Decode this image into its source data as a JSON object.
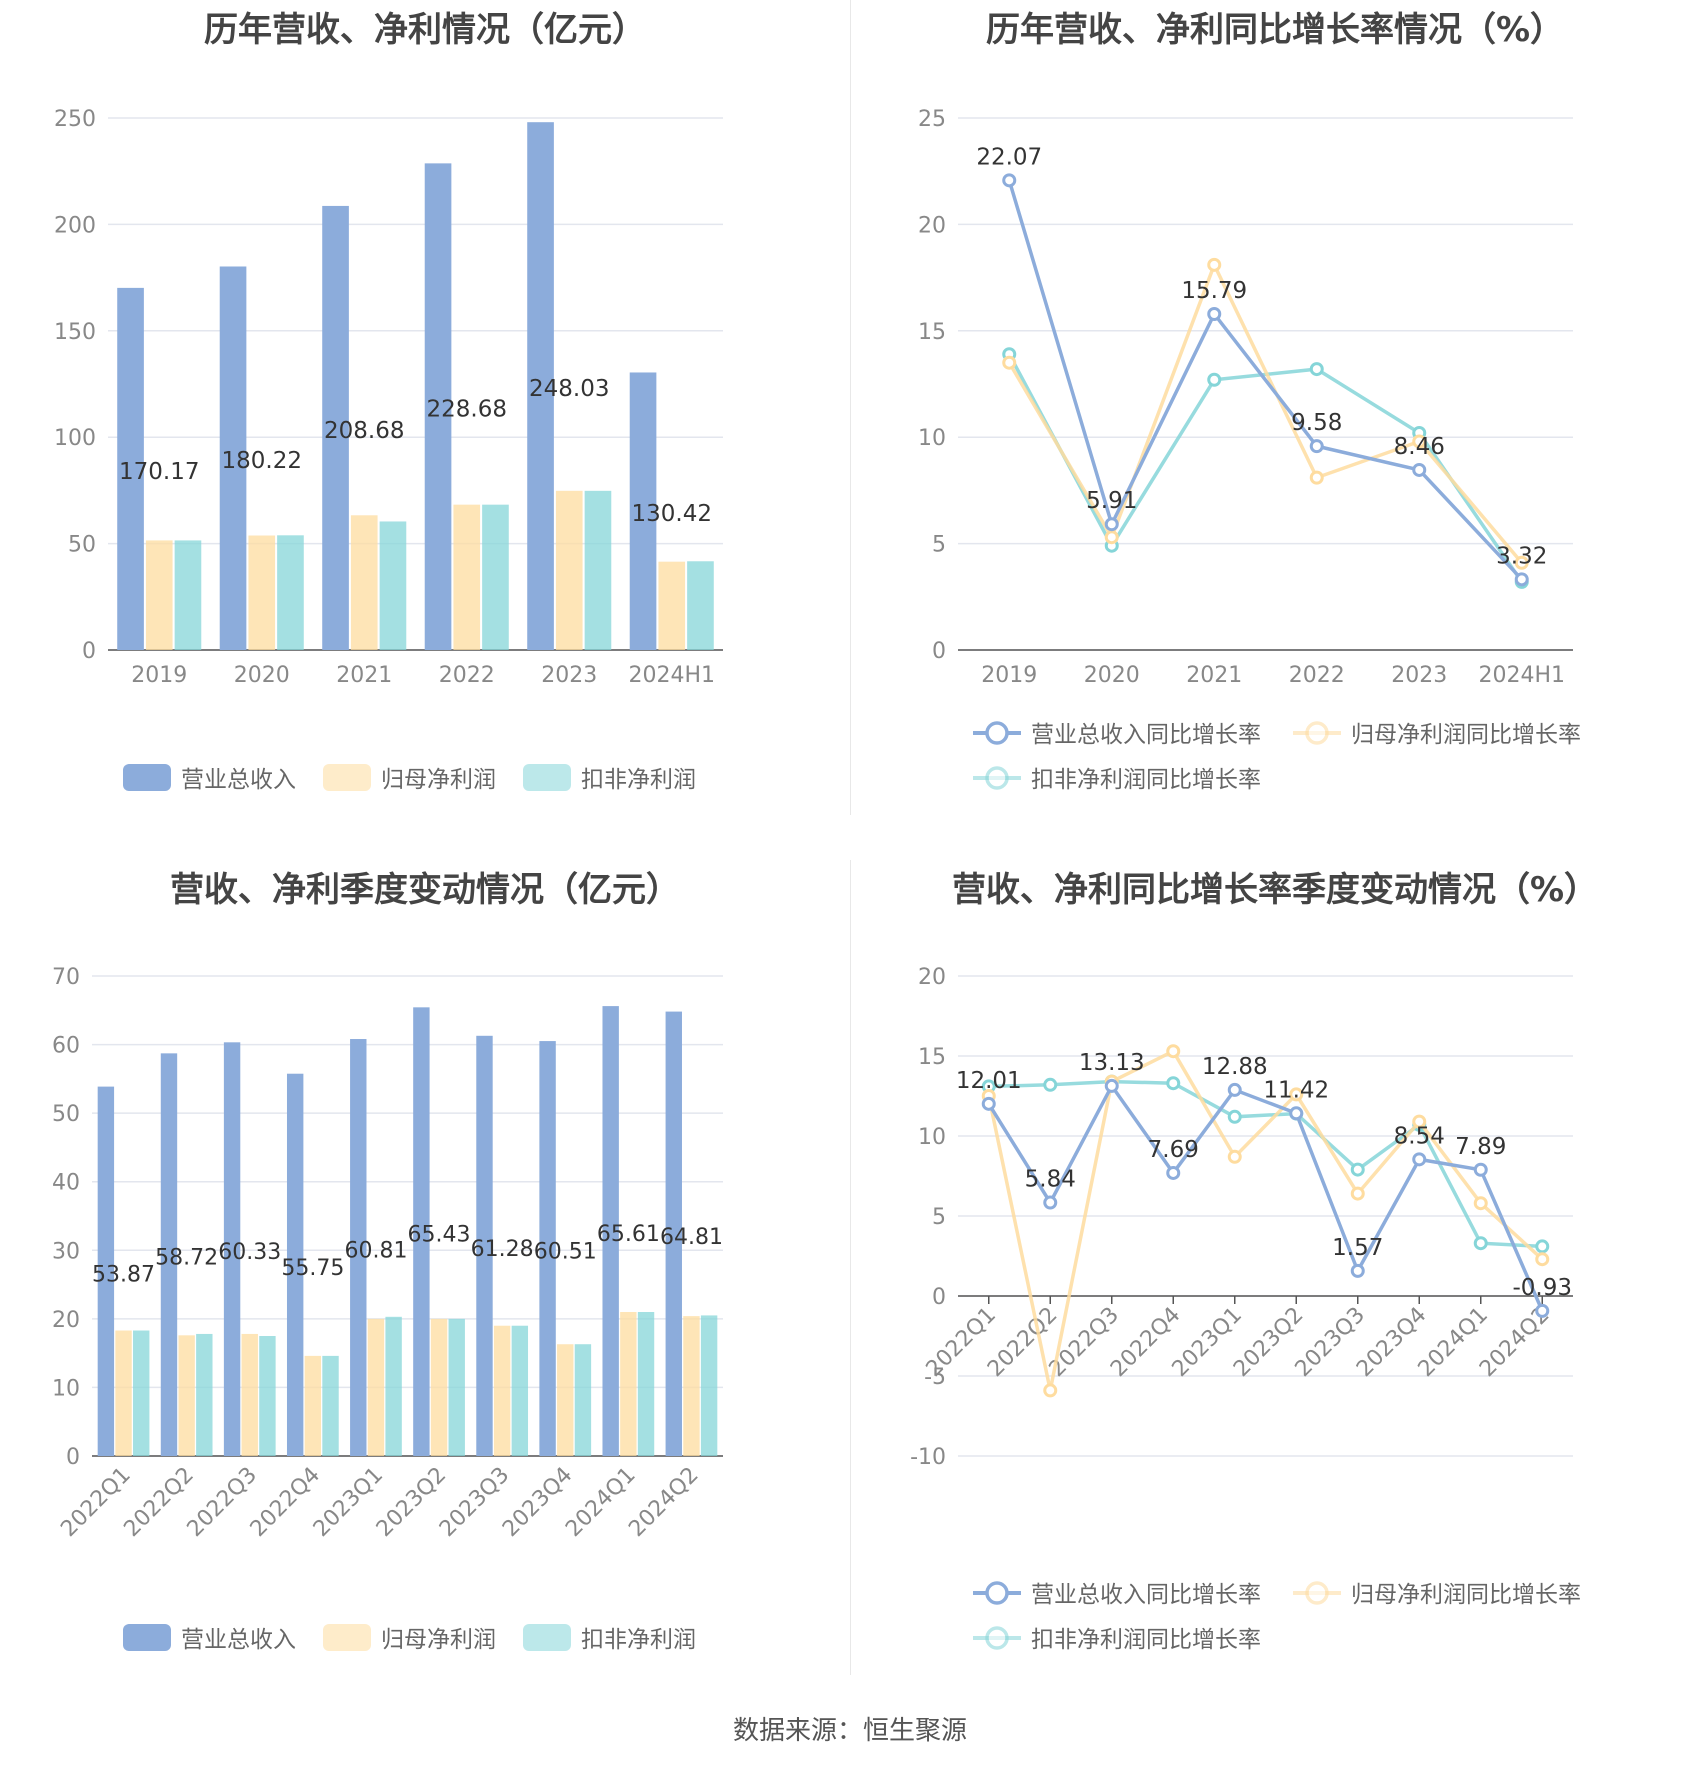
{
  "source_text": "数据来源：恒生聚源",
  "colors": {
    "revenue": "#8cacdb",
    "net_profit": "#fedc9f",
    "deducted_profit": "#85d5d8",
    "grid": "#e3e6ee",
    "axis": "#555555"
  },
  "charts": [
    {
      "title": "历年营收、净利情况（亿元）",
      "chart_data": {
        "type": "bar",
        "categories": [
          "2019",
          "2020",
          "2021",
          "2022",
          "2023",
          "2024H1"
        ],
        "ylim": [
          0,
          250
        ],
        "yticks": [
          0,
          50,
          100,
          150,
          200,
          250
        ],
        "grid": true,
        "legend_position": "bottom",
        "series": [
          {
            "name": "营业总收入",
            "values": [
              170.17,
              180.22,
              208.68,
              228.68,
              248.03,
              130.42
            ],
            "labels": [
              "170.17",
              "180.22",
              "208.68",
              "228.68",
              "248.03",
              "130.42"
            ]
          },
          {
            "name": "归母净利润",
            "values": [
              51.5,
              53.8,
              63.3,
              68.3,
              74.8,
              41.5
            ]
          },
          {
            "name": "扣非净利润",
            "values": [
              51.5,
              53.9,
              60.4,
              68.3,
              74.8,
              41.7
            ]
          }
        ]
      }
    },
    {
      "title": "历年营收、净利同比增长率情况（%）",
      "chart_data": {
        "type": "line",
        "categories": [
          "2019",
          "2020",
          "2021",
          "2022",
          "2023",
          "2024H1"
        ],
        "ylim": [
          0,
          25
        ],
        "yticks": [
          0,
          5,
          10,
          15,
          20,
          25
        ],
        "grid": true,
        "legend_position": "bottom",
        "series": [
          {
            "name": "营业总收入同比增长率",
            "values": [
              22.07,
              5.91,
              15.79,
              9.58,
              8.46,
              3.32
            ],
            "labels": [
              "22.07",
              "5.91",
              "15.79",
              "9.58",
              "8.46",
              "3.32"
            ]
          },
          {
            "name": "归母净利润同比增长率",
            "values": [
              13.5,
              5.3,
              18.1,
              8.1,
              9.8,
              4.1
            ]
          },
          {
            "name": "扣非净利润同比增长率",
            "values": [
              13.9,
              4.9,
              12.7,
              13.2,
              10.2,
              3.2
            ]
          }
        ]
      }
    },
    {
      "title": "营收、净利季度变动情况（亿元）",
      "chart_data": {
        "type": "bar",
        "categories": [
          "2022Q1",
          "2022Q2",
          "2022Q3",
          "2022Q4",
          "2023Q1",
          "2023Q2",
          "2023Q3",
          "2023Q4",
          "2024Q1",
          "2024Q2"
        ],
        "ylim": [
          0,
          70
        ],
        "yticks": [
          0,
          10,
          20,
          30,
          40,
          50,
          60,
          70
        ],
        "grid": true,
        "legend_position": "bottom",
        "series": [
          {
            "name": "营业总收入",
            "values": [
              53.87,
              58.72,
              60.33,
              55.75,
              60.81,
              65.43,
              61.28,
              60.51,
              65.61,
              64.81
            ],
            "labels": [
              "53.87",
              "58.72",
              "60.33",
              "55.75",
              "60.81",
              "65.43",
              "61.28",
              "60.51",
              "65.61",
              "64.81"
            ]
          },
          {
            "name": "归母净利润",
            "values": [
              18.3,
              17.6,
              17.8,
              14.6,
              20.0,
              20.0,
              19.0,
              16.3,
              21.0,
              20.4
            ]
          },
          {
            "name": "扣非净利润",
            "values": [
              18.3,
              17.8,
              17.5,
              14.6,
              20.3,
              20.0,
              19.0,
              16.3,
              21.0,
              20.5
            ]
          }
        ]
      }
    },
    {
      "title": "营收、净利同比增长率季度变动情况（%）",
      "chart_data": {
        "type": "line",
        "categories": [
          "2022Q1",
          "2022Q2",
          "2022Q3",
          "2022Q4",
          "2023Q1",
          "2023Q2",
          "2023Q3",
          "2023Q4",
          "2024Q1",
          "2024Q2"
        ],
        "ylim": [
          -10,
          20
        ],
        "yticks": [
          -10,
          -5,
          0,
          5,
          10,
          15,
          20
        ],
        "grid": true,
        "legend_position": "bottom",
        "series": [
          {
            "name": "营业总收入同比增长率",
            "values": [
              12.01,
              5.84,
              13.13,
              7.69,
              12.88,
              11.42,
              1.57,
              8.54,
              7.89,
              -0.93
            ],
            "labels": [
              "12.01",
              "5.84",
              "13.13",
              "7.69",
              "12.88",
              "11.42",
              "1.57",
              "8.54",
              "7.89",
              "-0.93"
            ]
          },
          {
            "name": "归母净利润同比增长率",
            "values": [
              12.5,
              -5.9,
              13.4,
              15.3,
              8.7,
              12.6,
              6.4,
              10.9,
              5.8,
              2.3
            ]
          },
          {
            "name": "扣非净利润同比增长率",
            "values": [
              13.1,
              13.2,
              13.4,
              13.3,
              11.2,
              11.4,
              7.9,
              10.7,
              3.3,
              3.1
            ]
          }
        ]
      }
    }
  ]
}
